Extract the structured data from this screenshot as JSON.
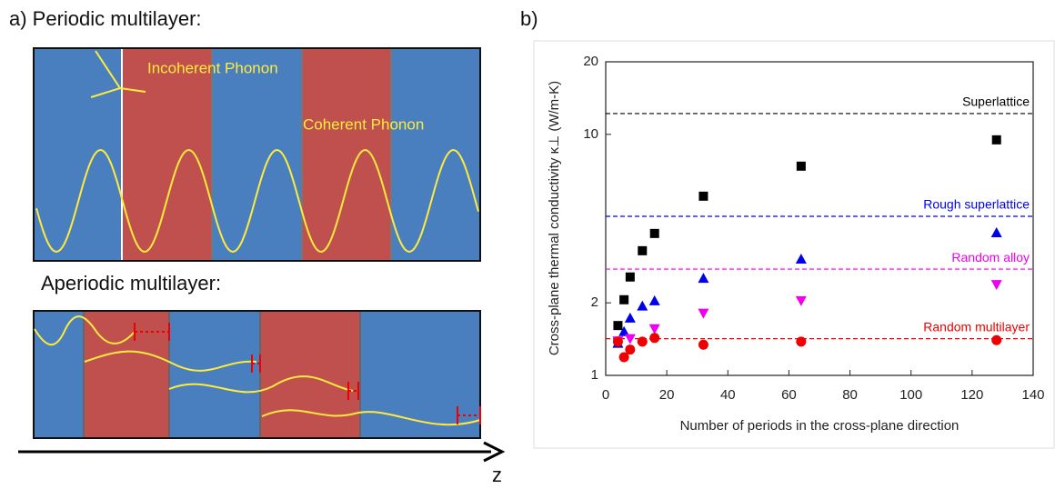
{
  "panel_a": {
    "title": "a) Periodic multilayer:",
    "incoherent_label": "Incoherent Phonon",
    "coherent_label": "Coherent Phonon",
    "aperiodic_title": "Aperiodic multilayer:",
    "axis_label": "z"
  },
  "chart_data": {
    "type": "scatter",
    "panel_label": "b)",
    "ylabel": "Cross-plane thermal conductivity κ⊥ (W/m-K)",
    "xlabel": "Number of periods in the cross-plane direction",
    "xlim": [
      0,
      140
    ],
    "xticks": [
      0,
      20,
      40,
      60,
      80,
      100,
      120,
      140
    ],
    "ylim": [
      1,
      20
    ],
    "yticks": [
      1,
      2,
      10,
      20
    ],
    "yscale": "log",
    "series": [
      {
        "color": "#000000",
        "marker": "square",
        "x": [
          4,
          6,
          8,
          12,
          16,
          32,
          64,
          128
        ],
        "values": [
          1.61,
          2.06,
          2.56,
          3.29,
          3.88,
          5.54,
          7.38,
          9.49
        ]
      },
      {
        "color": "#0000ee",
        "marker": "triangle-up",
        "x": [
          4,
          6,
          8,
          12,
          16,
          32,
          64,
          128
        ],
        "values": [
          1.36,
          1.52,
          1.73,
          1.94,
          2.04,
          2.53,
          3.04,
          3.91
        ]
      },
      {
        "color": "#ee00ee",
        "marker": "triangle-down",
        "x": [
          4,
          8,
          16,
          32,
          64,
          128
        ],
        "values": [
          1.39,
          1.42,
          1.56,
          1.81,
          2.04,
          2.38
        ]
      },
      {
        "color": "#ee0000",
        "marker": "circle",
        "x": [
          4,
          6,
          8,
          12,
          16,
          32,
          64,
          128
        ],
        "values": [
          1.38,
          1.19,
          1.28,
          1.38,
          1.43,
          1.34,
          1.38,
          1.4
        ]
      }
    ],
    "reference_lines": [
      {
        "label": "Superlattice",
        "value": 12.2,
        "color": "#000000"
      },
      {
        "label": "Rough superlattice",
        "value": 4.57,
        "color": "#0000ee"
      },
      {
        "label": "Random alloy",
        "value": 2.76,
        "color": "#ee00ee"
      },
      {
        "label": "Random multilayer",
        "value": 1.42,
        "color": "#ee0000"
      }
    ]
  }
}
